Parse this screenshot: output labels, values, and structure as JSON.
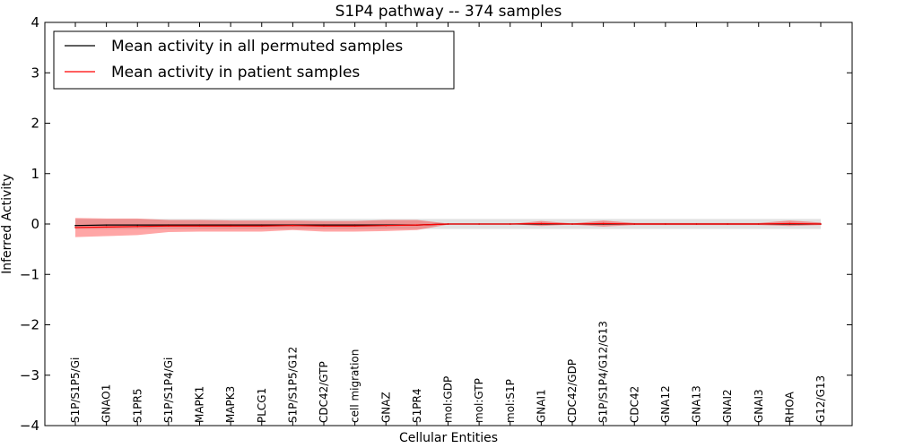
{
  "chart_data": {
    "type": "line",
    "title": "S1P4 pathway -- 374 samples",
    "xlabel": "Cellular Entities",
    "ylabel": "Inferred Activity",
    "ylim": [
      -4,
      4
    ],
    "yticks": [
      -4,
      -3,
      -2,
      -1,
      0,
      1,
      2,
      3,
      4
    ],
    "ytick_labels": [
      "−4",
      "−3",
      "−2",
      "−1",
      "0",
      "1",
      "2",
      "3",
      "4"
    ],
    "grid": false,
    "legend_position": "top-left",
    "categories": [
      "S1P/S1P5/Gi",
      "GNAO1",
      "S1PR5",
      "S1P/S1P4/Gi",
      "MAPK1",
      "MAPK3",
      "PLCG1",
      "S1P/S1P5/G12",
      "CDC42/GTP",
      "cell migration",
      "GNAZ",
      "S1PR4",
      "mol:GDP",
      "mol:GTP",
      "mol:S1P",
      "GNAI1",
      "CDC42/GDP",
      "S1P/S1P4/G12/G13",
      "CDC42",
      "GNA12",
      "GNA13",
      "GNAI2",
      "GNAI3",
      "RHOA",
      "G12/G13"
    ],
    "series": [
      {
        "name": "Mean activity in all permuted samples",
        "color": "#000000",
        "values": [
          -0.03,
          -0.02,
          -0.02,
          -0.02,
          -0.02,
          -0.02,
          -0.02,
          -0.02,
          -0.02,
          -0.02,
          -0.02,
          -0.02,
          0,
          0,
          0,
          0,
          0,
          0,
          0,
          0,
          0,
          0,
          0,
          0,
          0
        ],
        "band_lower": [
          -0.1,
          -0.1,
          -0.1,
          -0.1,
          -0.1,
          -0.1,
          -0.1,
          -0.1,
          -0.1,
          -0.1,
          -0.1,
          -0.1,
          -0.1,
          -0.1,
          -0.1,
          -0.1,
          -0.1,
          -0.1,
          -0.1,
          -0.1,
          -0.1,
          -0.1,
          -0.1,
          -0.1,
          -0.1
        ],
        "band_upper": [
          0.1,
          0.1,
          0.1,
          0.1,
          0.1,
          0.1,
          0.1,
          0.1,
          0.1,
          0.1,
          0.1,
          0.1,
          0.1,
          0.1,
          0.1,
          0.1,
          0.1,
          0.1,
          0.1,
          0.1,
          0.1,
          0.1,
          0.1,
          0.1,
          0.1
        ],
        "band_color": "#c8c8c8"
      },
      {
        "name": "Mean activity in patient samples",
        "color": "#ff0000",
        "values": [
          -0.07,
          -0.06,
          -0.05,
          -0.04,
          -0.04,
          -0.04,
          -0.04,
          -0.03,
          -0.04,
          -0.04,
          -0.03,
          -0.02,
          0,
          0,
          0,
          0.01,
          0,
          0.01,
          0,
          0,
          0,
          0,
          0,
          0.01,
          0
        ],
        "band_lower": [
          -0.26,
          -0.24,
          -0.22,
          -0.16,
          -0.15,
          -0.15,
          -0.15,
          -0.12,
          -0.15,
          -0.15,
          -0.14,
          -0.12,
          -0.01,
          0,
          0,
          -0.04,
          -0.01,
          -0.05,
          -0.02,
          -0.02,
          -0.02,
          -0.02,
          -0.02,
          -0.04,
          -0.02
        ],
        "band_upper": [
          0.12,
          0.11,
          0.11,
          0.08,
          0.08,
          0.07,
          0.07,
          0.07,
          0.06,
          0.06,
          0.08,
          0.08,
          0.01,
          0,
          0,
          0.06,
          0.01,
          0.07,
          0.02,
          0.02,
          0.02,
          0.02,
          0.02,
          0.07,
          0.03
        ],
        "band_color": "#ff0000"
      }
    ]
  }
}
